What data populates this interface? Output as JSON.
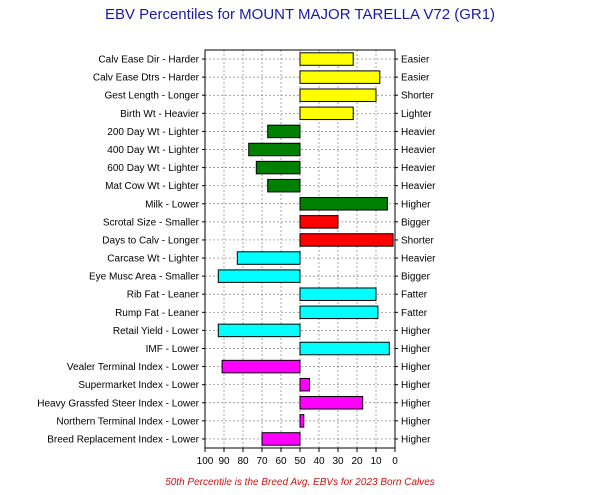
{
  "chart_data": {
    "type": "bar",
    "title": "EBV Percentiles for MOUNT MAJOR TARELLA V72 (GR1)",
    "footer": "50th Percentile is the Breed Avg. EBVs for 2023 Born Calves",
    "x_axis": {
      "min": 100,
      "max": 0,
      "reversed": true,
      "ticks": [
        "100",
        "90",
        "80",
        "70",
        "60",
        "50",
        "40",
        "30",
        "20",
        "10",
        "0"
      ]
    },
    "baseline": 50,
    "grid": true,
    "colors": {
      "yellow": "#ffff00",
      "green": "#008000",
      "red": "#ff0000",
      "cyan": "#00ffff",
      "magenta": "#ff00ff"
    },
    "traits": [
      {
        "left_label": "Calv Ease Dir - Harder",
        "right_label": "Easier",
        "value": 22,
        "color": "yellow"
      },
      {
        "left_label": "Calv Ease Dtrs - Harder",
        "right_label": "Easier",
        "value": 8,
        "color": "yellow"
      },
      {
        "left_label": "Gest Length - Longer",
        "right_label": "Shorter",
        "value": 10,
        "color": "yellow"
      },
      {
        "left_label": "Birth Wt - Heavier",
        "right_label": "Lighter",
        "value": 22,
        "color": "yellow"
      },
      {
        "left_label": "200 Day Wt - Lighter",
        "right_label": "Heavier",
        "value": 67,
        "color": "green"
      },
      {
        "left_label": "400 Day Wt - Lighter",
        "right_label": "Heavier",
        "value": 77,
        "color": "green"
      },
      {
        "left_label": "600 Day Wt - Lighter",
        "right_label": "Heavier",
        "value": 73,
        "color": "green"
      },
      {
        "left_label": "Mat Cow Wt - Lighter",
        "right_label": "Heavier",
        "value": 67,
        "color": "green"
      },
      {
        "left_label": "Milk - Lower",
        "right_label": "Higher",
        "value": 4,
        "color": "green"
      },
      {
        "left_label": "Scrotal Size - Smaller",
        "right_label": "Bigger",
        "value": 30,
        "color": "red"
      },
      {
        "left_label": "Days to Calv - Longer",
        "right_label": "Shorter",
        "value": 1,
        "color": "red"
      },
      {
        "left_label": "Carcase Wt - Lighter",
        "right_label": "Heavier",
        "value": 83,
        "color": "cyan"
      },
      {
        "left_label": "Eye Musc Area - Smaller",
        "right_label": "Bigger",
        "value": 93,
        "color": "cyan"
      },
      {
        "left_label": "Rib Fat - Leaner",
        "right_label": "Fatter",
        "value": 10,
        "color": "cyan"
      },
      {
        "left_label": "Rump Fat - Leaner",
        "right_label": "Fatter",
        "value": 9,
        "color": "cyan"
      },
      {
        "left_label": "Retail Yield - Lower",
        "right_label": "Higher",
        "value": 93,
        "color": "cyan"
      },
      {
        "left_label": "IMF - Lower",
        "right_label": "Higher",
        "value": 3,
        "color": "cyan"
      },
      {
        "left_label": "Vealer Terminal Index - Lower",
        "right_label": "Higher",
        "value": 91,
        "color": "magenta"
      },
      {
        "left_label": "Supermarket Index - Lower",
        "right_label": "Higher",
        "value": 45,
        "color": "magenta"
      },
      {
        "left_label": "Heavy Grassfed Steer Index - Lower",
        "right_label": "Higher",
        "value": 17,
        "color": "magenta"
      },
      {
        "left_label": "Northern Terminal Index - Lower",
        "right_label": "Higher",
        "value": 48,
        "color": "magenta"
      },
      {
        "left_label": "Breed Replacement Index - Lower",
        "right_label": "Higher",
        "value": 70,
        "color": "magenta"
      }
    ]
  }
}
